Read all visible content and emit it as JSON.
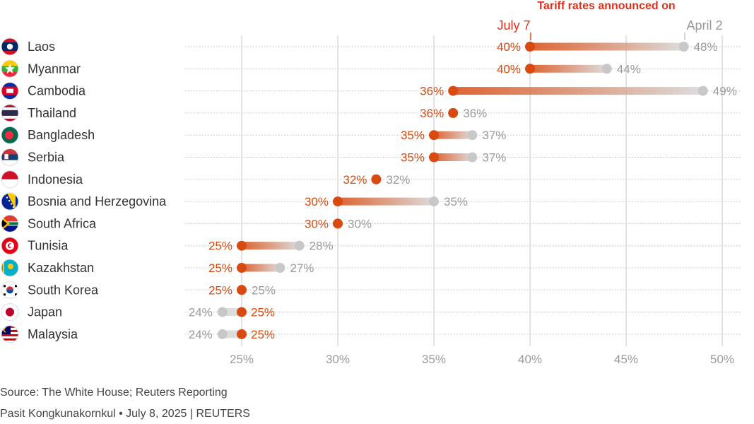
{
  "header": {
    "title": "Tariff rates announced on",
    "new_label": "July 7",
    "old_label": "April 2"
  },
  "footer": {
    "source": "Source: The White House; Reuters Reporting",
    "credit": "Pasit Kongkunakornkul • July 8, 2025 | REUTERS"
  },
  "colors": {
    "new": "#d94a10",
    "old": "#c8c8c8",
    "title": "#e0301e",
    "old_text": "#9a9a9a",
    "grid": "#c8c8c8"
  },
  "chart_data": {
    "type": "dumbbell",
    "title": "Tariff rates announced on",
    "series": [
      {
        "name": "July 7"
      },
      {
        "name": "April 2"
      }
    ],
    "xlim": [
      25,
      50
    ],
    "x_ticks": [
      "25%",
      "30%",
      "35%",
      "40%",
      "45%",
      "50%"
    ],
    "x_tick_values": [
      25,
      30,
      35,
      40,
      45,
      50
    ],
    "grid": true,
    "rows": [
      {
        "country": "Laos",
        "flag": "laos-flag",
        "july7": 40,
        "april2": 48
      },
      {
        "country": "Myanmar",
        "flag": "myanmar-flag",
        "july7": 40,
        "april2": 44
      },
      {
        "country": "Cambodia",
        "flag": "cambodia-flag",
        "july7": 36,
        "april2": 49
      },
      {
        "country": "Thailand",
        "flag": "thailand-flag",
        "july7": 36,
        "april2": 36
      },
      {
        "country": "Bangladesh",
        "flag": "bangladesh-flag",
        "july7": 35,
        "april2": 37
      },
      {
        "country": "Serbia",
        "flag": "serbia-flag",
        "july7": 35,
        "april2": 37
      },
      {
        "country": "Indonesia",
        "flag": "indonesia-flag",
        "july7": 32,
        "april2": 32
      },
      {
        "country": "Bosnia and Herzegovina",
        "flag": "bosnia-flag",
        "july7": 30,
        "april2": 35
      },
      {
        "country": "South Africa",
        "flag": "south-africa-flag",
        "july7": 30,
        "april2": 30
      },
      {
        "country": "Tunisia",
        "flag": "tunisia-flag",
        "july7": 25,
        "april2": 28
      },
      {
        "country": "Kazakhstan",
        "flag": "kazakhstan-flag",
        "july7": 25,
        "april2": 27
      },
      {
        "country": "South Korea",
        "flag": "south-korea-flag",
        "july7": 25,
        "april2": 25
      },
      {
        "country": "Japan",
        "flag": "japan-flag",
        "july7": 25,
        "april2": 24
      },
      {
        "country": "Malaysia",
        "flag": "malaysia-flag",
        "july7": 25,
        "april2": 24
      }
    ]
  }
}
